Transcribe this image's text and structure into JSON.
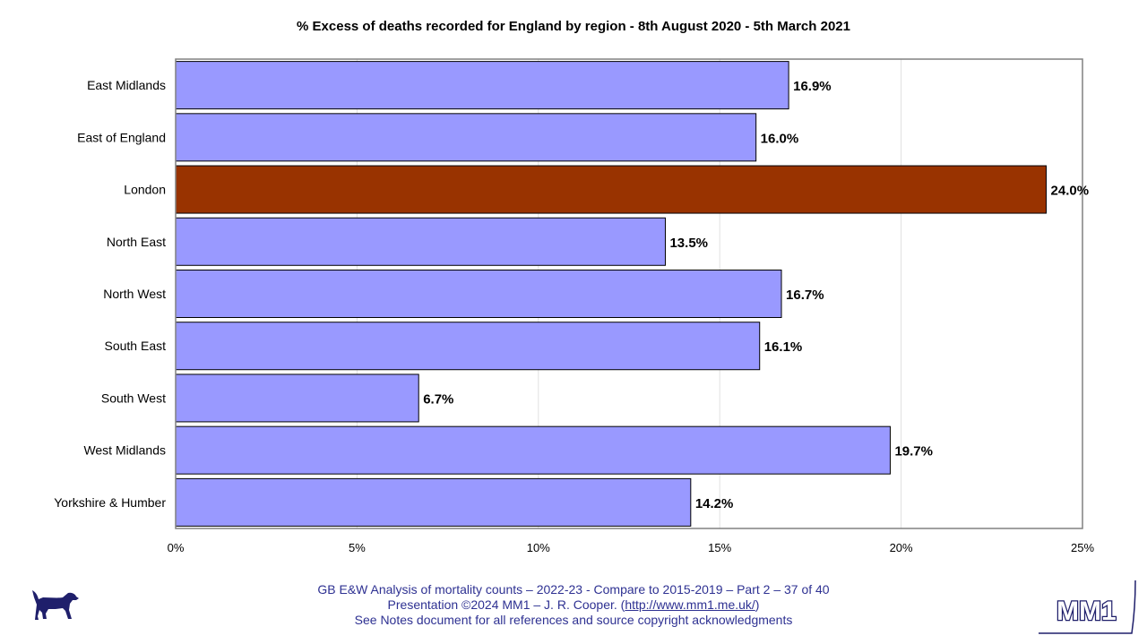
{
  "chart_data": {
    "type": "bar",
    "orientation": "horizontal",
    "title": "% Excess of deaths recorded for England by region - 8th August 2020 - 5th March 2021",
    "categories": [
      "East Midlands",
      "East of  England",
      "London",
      "North East",
      "North West",
      "South East",
      "South West",
      "West Midlands",
      "Yorkshire & Humber"
    ],
    "values": [
      16.9,
      16.0,
      24.0,
      13.5,
      16.7,
      16.1,
      6.7,
      19.7,
      14.2
    ],
    "data_labels": [
      "16.9%",
      "16.0%",
      "24.0%",
      "13.5%",
      "16.7%",
      "16.1%",
      "6.7%",
      "19.7%",
      "14.2%"
    ],
    "highlight_category": "London",
    "colors": {
      "bar": "#9999ff",
      "highlight": "#993300",
      "grid": "#e0e0e0",
      "frame": "#808080"
    },
    "xlim": [
      0,
      25
    ],
    "xticks": [
      0,
      5,
      10,
      15,
      20,
      25
    ],
    "xtick_labels": [
      "0%",
      "5%",
      "10%",
      "15%",
      "20%",
      "25%"
    ],
    "grid": true,
    "legend": "none"
  },
  "footer": {
    "line1": "GB E&W Analysis of mortality counts – 2022-23 - Compare to 2015-2019 – Part 2 – 37 of 40",
    "line2_prefix": "Presentation ©2024 MM1 – J. R. Cooper. (",
    "line2_link": "http://www.mm1.me.uk/",
    "line2_suffix": ")",
    "line3": "See Notes document for all references and source copyright acknowledgments"
  },
  "logos": {
    "left": "dog-silhouette-icon",
    "right_text": "MM1",
    "brand_color": "#1f1f6b"
  }
}
